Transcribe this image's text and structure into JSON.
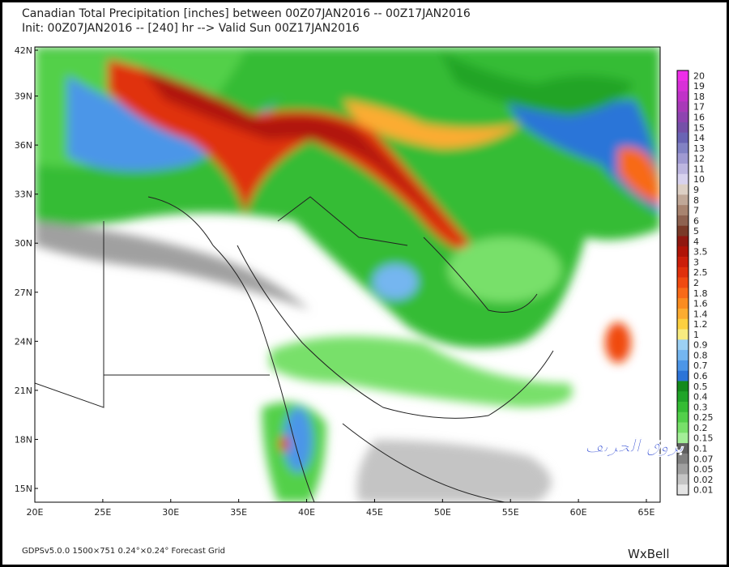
{
  "header": {
    "title": "Canadian Total Precipitation [inches] between 00Z07JAN2016 -- 00Z17JAN2016",
    "subtitle": "Init: 00Z07JAN2016 -- [240] hr --> Valid Sun 00Z17JAN2016"
  },
  "map": {
    "lat_labels": [
      "42N",
      "39N",
      "36N",
      "33N",
      "30N",
      "27N",
      "24N",
      "21N",
      "18N",
      "15N"
    ],
    "lon_labels": [
      "20E",
      "25E",
      "30E",
      "35E",
      "40E",
      "45E",
      "50E",
      "55E",
      "60E",
      "65E"
    ]
  },
  "legend": {
    "levels": [
      {
        "label": "20",
        "color": "#ee2ee8"
      },
      {
        "label": "19",
        "color": "#d82fd8"
      },
      {
        "label": "18",
        "color": "#c032c8"
      },
      {
        "label": "17",
        "color": "#a83ab8"
      },
      {
        "label": "16",
        "color": "#8e44b0"
      },
      {
        "label": "15",
        "color": "#7550a8"
      },
      {
        "label": "14",
        "color": "#6a64b4"
      },
      {
        "label": "13",
        "color": "#8282c4"
      },
      {
        "label": "12",
        "color": "#a09ad2"
      },
      {
        "label": "11",
        "color": "#bdb6e0"
      },
      {
        "label": "10",
        "color": "#d8d2ee"
      },
      {
        "label": "9",
        "color": "#dccfc4"
      },
      {
        "label": "8",
        "color": "#c0a898"
      },
      {
        "label": "7",
        "color": "#a88470"
      },
      {
        "label": "6",
        "color": "#8e6250"
      },
      {
        "label": "5",
        "color": "#7a3a28"
      },
      {
        "label": "4",
        "color": "#901810"
      },
      {
        "label": "3.5",
        "color": "#b01408"
      },
      {
        "label": "3",
        "color": "#cc1e0a"
      },
      {
        "label": "2.5",
        "color": "#e0300c"
      },
      {
        "label": "2",
        "color": "#f04a10"
      },
      {
        "label": "1.8",
        "color": "#f86a18"
      },
      {
        "label": "1.6",
        "color": "#fa8c20"
      },
      {
        "label": "1.4",
        "color": "#fcac30"
      },
      {
        "label": "1.2",
        "color": "#fcd040"
      },
      {
        "label": "1",
        "color": "#f8ec80"
      },
      {
        "label": "0.9",
        "color": "#9cd0f4"
      },
      {
        "label": "0.8",
        "color": "#74b6f0"
      },
      {
        "label": "0.7",
        "color": "#4c96e8"
      },
      {
        "label": "0.6",
        "color": "#2c74d8"
      },
      {
        "label": "0.5",
        "color": "#148a1c"
      },
      {
        "label": "0.4",
        "color": "#20a428"
      },
      {
        "label": "0.3",
        "color": "#34bc34"
      },
      {
        "label": "0.25",
        "color": "#52d04a"
      },
      {
        "label": "0.2",
        "color": "#78e06a"
      },
      {
        "label": "0.15",
        "color": "#a4ee98"
      },
      {
        "label": "0.1",
        "color": "#606060"
      },
      {
        "label": "0.07",
        "color": "#808080"
      },
      {
        "label": "0.05",
        "color": "#a0a0a0"
      },
      {
        "label": "0.02",
        "color": "#c4c4c4"
      },
      {
        "label": "0.01",
        "color": "#e4e4e4"
      }
    ]
  },
  "footer": {
    "grid_info": "GDPSv5.0.0 1500×751 0.24°×0.24° Forecast Grid",
    "logo": "WxBell"
  },
  "watermark": "بروق الخريف"
}
